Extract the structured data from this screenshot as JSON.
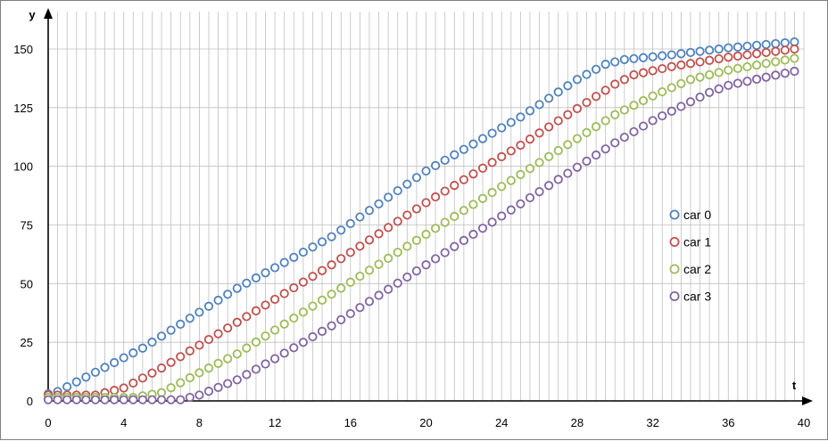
{
  "chart_data": {
    "type": "scatter",
    "xlabel": "t",
    "ylabel": "y",
    "xlim": [
      0,
      40
    ],
    "ylim": [
      0,
      165
    ],
    "x_ticks": [
      0,
      4,
      8,
      12,
      16,
      20,
      24,
      28,
      32,
      36,
      40
    ],
    "y_ticks": [
      0,
      25,
      50,
      75,
      100,
      125,
      150
    ],
    "grid": "on",
    "legend_position": "right",
    "marker": "open-circle",
    "sampling": {
      "t_start": 0,
      "t_end": 39.5,
      "step": 0.5
    },
    "series": [
      {
        "name": "car 0",
        "color": "#4f81bd",
        "keypoints": [
          [
            0,
            3
          ],
          [
            0.5,
            4
          ],
          [
            5,
            22.5
          ],
          [
            10,
            48
          ],
          [
            15,
            70
          ],
          [
            20,
            98
          ],
          [
            25,
            121
          ],
          [
            28,
            137
          ],
          [
            29.5,
            143.5
          ],
          [
            30.5,
            145.5
          ],
          [
            33,
            147.5
          ],
          [
            36,
            150.5
          ],
          [
            39.5,
            153
          ]
        ]
      },
      {
        "name": "car 1",
        "color": "#c0504d",
        "keypoints": [
          [
            0,
            2.5
          ],
          [
            2,
            2.5
          ],
          [
            2.5,
            2.5
          ],
          [
            4,
            5.5
          ],
          [
            6,
            14
          ],
          [
            10,
            33.5
          ],
          [
            15,
            58
          ],
          [
            20,
            84.5
          ],
          [
            25,
            109
          ],
          [
            30,
            135
          ],
          [
            31,
            139
          ],
          [
            33,
            142.5
          ],
          [
            36,
            146.5
          ],
          [
            39.5,
            150
          ]
        ]
      },
      {
        "name": "car 2",
        "color": "#9bbb59",
        "keypoints": [
          [
            0,
            1.5
          ],
          [
            4,
            1.5
          ],
          [
            4.5,
            1.5
          ],
          [
            6,
            3.5
          ],
          [
            8,
            12
          ],
          [
            10,
            20
          ],
          [
            15,
            45.5
          ],
          [
            20,
            71
          ],
          [
            25,
            96.5
          ],
          [
            30,
            122
          ],
          [
            32,
            130
          ],
          [
            34,
            137
          ],
          [
            36,
            141
          ],
          [
            39.5,
            146
          ]
        ]
      },
      {
        "name": "car 3",
        "color": "#8064a2",
        "keypoints": [
          [
            0,
            0.5
          ],
          [
            6.5,
            0.5
          ],
          [
            7,
            0.5
          ],
          [
            8,
            2.5
          ],
          [
            10,
            9
          ],
          [
            12,
            18
          ],
          [
            15,
            32
          ],
          [
            20,
            58
          ],
          [
            25,
            84
          ],
          [
            30,
            110
          ],
          [
            32,
            119.5
          ],
          [
            34,
            127.5
          ],
          [
            35,
            131.5
          ],
          [
            36,
            134.5
          ],
          [
            38,
            138
          ],
          [
            39.5,
            140.5
          ]
        ]
      }
    ]
  }
}
